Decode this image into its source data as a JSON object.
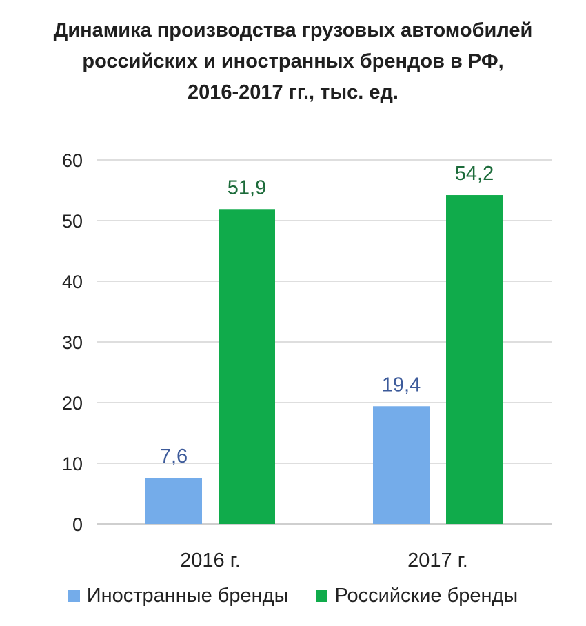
{
  "chart_data": {
    "type": "bar",
    "title_lines": [
      "Динамика производства грузовых автомобилей",
      "российских  и иностранных брендов в РФ,",
      "2016-2017 гг.,  тыс. ед."
    ],
    "categories": [
      "2016 г.",
      "2017 г."
    ],
    "series": [
      {
        "name": "Иностранные бренды",
        "values": [
          7.6,
          19.4
        ],
        "labels": [
          "7,6",
          "19,4"
        ],
        "color": "#74acea",
        "label_color": "#3c5a9a"
      },
      {
        "name": "Российские бренды",
        "values": [
          51.9,
          54.2
        ],
        "labels": [
          "51,9",
          "54,2"
        ],
        "color": "#10ab4b",
        "label_color": "#1c6b3a"
      }
    ],
    "ylim": [
      0,
      60
    ],
    "yticks": [
      0,
      10,
      20,
      30,
      40,
      50,
      60
    ],
    "grid": true,
    "legend_position": "bottom"
  }
}
